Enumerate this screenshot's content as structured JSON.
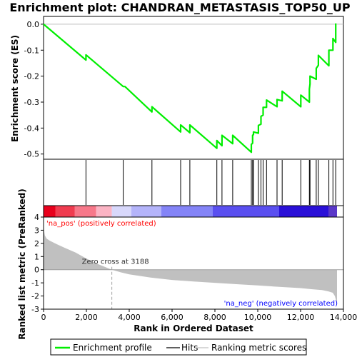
{
  "chart_data": {
    "type": "line",
    "title": "Enrichment plot: CHANDRAN_METASTASIS_TOP50_UP",
    "xlabel": "Rank in Ordered Dataset",
    "ylabel_top": "Enrichment score (ES)",
    "ylabel_bottom": "Ranked list metric (PreRanked)",
    "x_ticks": [
      "0",
      "2,000",
      "4,000",
      "6,000",
      "8,000",
      "10,000",
      "12,000",
      "14,000"
    ],
    "x_tick_values": [
      0,
      2000,
      4000,
      6000,
      8000,
      10000,
      12000,
      14000
    ],
    "xlim": [
      0,
      14000
    ],
    "es_ticks": [
      "0.0",
      "-0.1",
      "-0.2",
      "-0.3",
      "-0.4",
      "-0.5"
    ],
    "es_tick_values": [
      0.0,
      -0.1,
      -0.2,
      -0.3,
      -0.4,
      -0.5
    ],
    "es_ylim": [
      -0.52,
      0.03
    ],
    "metric_ticks": [
      "4",
      "3",
      "2",
      "1",
      "0",
      "-1",
      "-2",
      "-3"
    ],
    "metric_tick_values": [
      4,
      3,
      2,
      1,
      0,
      -1,
      -2,
      -3
    ],
    "metric_ylim": [
      -3,
      4
    ],
    "n_genes": 13700,
    "es_profile": {
      "name": "Enrichment profile",
      "color": "#00ee00",
      "x": [
        0,
        1980,
        1980,
        3720,
        3800,
        5060,
        5060,
        6400,
        6400,
        6830,
        6830,
        8090,
        8090,
        8330,
        8330,
        8830,
        8830,
        9700,
        9700,
        9760,
        9760,
        9800,
        9800,
        10030,
        10030,
        10150,
        10150,
        10250,
        10250,
        10410,
        10410,
        10900,
        10900,
        11140,
        11140,
        12010,
        12010,
        12410,
        12410,
        12440,
        12440,
        12730,
        12730,
        12830,
        12830,
        13320,
        13320,
        13510,
        13510,
        13640,
        13640
      ],
      "y": [
        0.0,
        -0.138,
        -0.118,
        -0.24,
        -0.24,
        -0.338,
        -0.318,
        -0.415,
        -0.388,
        -0.418,
        -0.388,
        -0.478,
        -0.448,
        -0.468,
        -0.428,
        -0.46,
        -0.428,
        -0.493,
        -0.463,
        -0.458,
        -0.428,
        -0.425,
        -0.415,
        -0.42,
        -0.39,
        -0.385,
        -0.355,
        -0.35,
        -0.32,
        -0.32,
        -0.292,
        -0.318,
        -0.29,
        -0.295,
        -0.258,
        -0.318,
        -0.273,
        -0.3,
        -0.25,
        -0.23,
        -0.2,
        -0.212,
        -0.17,
        -0.158,
        -0.12,
        -0.16,
        -0.1,
        -0.1,
        -0.055,
        -0.07,
        0.003
      ]
    },
    "hits": [
      1980,
      3720,
      5060,
      6400,
      6830,
      8090,
      8330,
      8830,
      9700,
      9760,
      9800,
      10030,
      10150,
      10250,
      10410,
      10900,
      11140,
      12010,
      12410,
      12440,
      12730,
      12830,
      13320,
      13510,
      13640
    ],
    "metric_curve": {
      "x": [
        0,
        20,
        60,
        150,
        300,
        600,
        1000,
        1500,
        2000,
        2500,
        3188,
        3600,
        4000,
        5000,
        6000,
        7000,
        8000,
        9000,
        10000,
        11000,
        12000,
        12500,
        13000,
        13300,
        13500,
        13600,
        13650,
        13700
      ],
      "y": [
        4.0,
        3.0,
        2.6,
        2.35,
        2.2,
        1.95,
        1.65,
        1.3,
        0.85,
        0.45,
        0.0,
        -0.2,
        -0.35,
        -0.6,
        -0.78,
        -0.9,
        -1.0,
        -1.1,
        -1.2,
        -1.3,
        -1.4,
        -1.48,
        -1.55,
        -1.65,
        -1.75,
        -2.0,
        -2.3,
        -2.7
      ]
    },
    "zero_cross_label": "Zero cross at 3188",
    "zero_cross_x": 3188,
    "pos_label": "'na_pos' (positively correlated)",
    "neg_label": "'na_neg' (negatively correlated)",
    "pos_color": "#ff0000",
    "neg_color": "#0000ff",
    "color_bar_segments": [
      {
        "to": 550,
        "color": "#e8001c"
      },
      {
        "to": 1450,
        "color": "#f03c50"
      },
      {
        "to": 2450,
        "color": "#f7788a"
      },
      {
        "to": 3188,
        "color": "#fbb4c4"
      },
      {
        "to": 4100,
        "color": "#d8d8fb"
      },
      {
        "to": 5500,
        "color": "#b4b4fa"
      },
      {
        "to": 7900,
        "color": "#8484f7"
      },
      {
        "to": 11000,
        "color": "#5a4ff0"
      },
      {
        "to": 13300,
        "color": "#2a10d8"
      },
      {
        "to": 13700,
        "color": "#5a38c8"
      }
    ],
    "legend": [
      "Enrichment profile",
      "Hits",
      "Ranking metric scores"
    ],
    "legend_colors": {
      "profile": "#00ee00",
      "hits": "#000000",
      "metric": "#c0c0c0"
    }
  }
}
